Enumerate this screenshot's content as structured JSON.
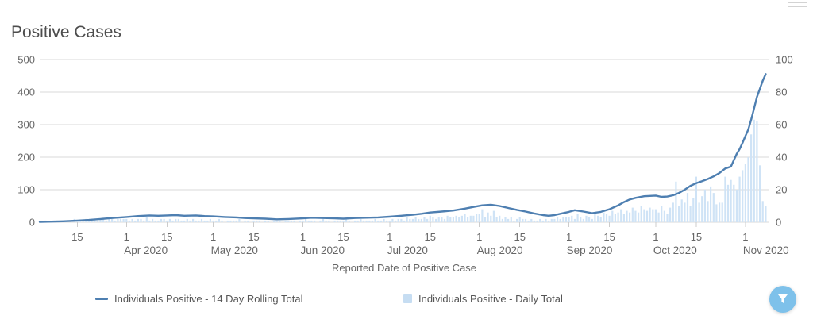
{
  "header": {
    "title": "Positive Cases"
  },
  "chart_data": {
    "type": "line+bar",
    "title": "Positive Cases",
    "xlabel": "Reported Date of Positive Case",
    "x_domain_days": 252,
    "x_start_date": "Mar 2 2020",
    "left_axis": {
      "min": 0,
      "max": 500,
      "ticks": [
        500,
        400,
        300,
        200,
        100,
        0
      ]
    },
    "right_axis": {
      "min": 0,
      "max": 100,
      "ticks": [
        100,
        80,
        60,
        40,
        20,
        0
      ]
    },
    "x_ticks": [
      {
        "day": 13,
        "label": "15"
      },
      {
        "day": 30,
        "label": "1",
        "month": "Apr 2020"
      },
      {
        "day": 44,
        "label": "15"
      },
      {
        "day": 60,
        "label": "1",
        "month": "May 2020"
      },
      {
        "day": 74,
        "label": "15"
      },
      {
        "day": 91,
        "label": "1",
        "month": "Jun 2020"
      },
      {
        "day": 105,
        "label": "15"
      },
      {
        "day": 121,
        "label": "1",
        "month": "Jul 2020"
      },
      {
        "day": 135,
        "label": "15"
      },
      {
        "day": 152,
        "label": "1",
        "month": "Aug 2020"
      },
      {
        "day": 166,
        "label": "15"
      },
      {
        "day": 183,
        "label": "1",
        "month": "Sep 2020"
      },
      {
        "day": 197,
        "label": "15"
      },
      {
        "day": 213,
        "label": "1",
        "month": "Oct 2020"
      },
      {
        "day": 227,
        "label": "15"
      },
      {
        "day": 244,
        "label": "1",
        "month": "Nov 2020"
      }
    ],
    "series": [
      {
        "name": "Individuals Positive - 14 Day Rolling Total",
        "type": "line",
        "axis": "left",
        "color": "#4e7fb1",
        "points": [
          [
            0,
            1
          ],
          [
            4,
            2
          ],
          [
            8,
            3
          ],
          [
            13,
            5
          ],
          [
            17,
            7
          ],
          [
            21,
            10
          ],
          [
            25,
            13
          ],
          [
            30,
            16
          ],
          [
            34,
            19
          ],
          [
            38,
            21
          ],
          [
            41,
            20
          ],
          [
            44,
            21
          ],
          [
            47,
            22
          ],
          [
            50,
            20
          ],
          [
            54,
            21
          ],
          [
            57,
            19
          ],
          [
            60,
            18
          ],
          [
            64,
            16
          ],
          [
            68,
            15
          ],
          [
            71,
            13
          ],
          [
            74,
            12
          ],
          [
            78,
            11
          ],
          [
            82,
            9
          ],
          [
            86,
            10
          ],
          [
            91,
            12
          ],
          [
            94,
            14
          ],
          [
            98,
            13
          ],
          [
            102,
            12
          ],
          [
            105,
            11
          ],
          [
            109,
            13
          ],
          [
            113,
            14
          ],
          [
            117,
            15
          ],
          [
            121,
            17
          ],
          [
            125,
            20
          ],
          [
            129,
            23
          ],
          [
            132,
            26
          ],
          [
            135,
            30
          ],
          [
            139,
            33
          ],
          [
            143,
            36
          ],
          [
            147,
            42
          ],
          [
            150,
            47
          ],
          [
            153,
            52
          ],
          [
            156,
            54
          ],
          [
            159,
            50
          ],
          [
            162,
            44
          ],
          [
            165,
            38
          ],
          [
            168,
            33
          ],
          [
            171,
            27
          ],
          [
            174,
            22
          ],
          [
            176,
            20
          ],
          [
            178,
            22
          ],
          [
            180,
            26
          ],
          [
            183,
            32
          ],
          [
            185,
            37
          ],
          [
            188,
            33
          ],
          [
            191,
            28
          ],
          [
            194,
            32
          ],
          [
            197,
            40
          ],
          [
            200,
            52
          ],
          [
            202,
            62
          ],
          [
            204,
            70
          ],
          [
            206,
            75
          ],
          [
            209,
            80
          ],
          [
            211,
            81
          ],
          [
            213,
            82
          ],
          [
            215,
            78
          ],
          [
            217,
            79
          ],
          [
            219,
            83
          ],
          [
            221,
            90
          ],
          [
            223,
            100
          ],
          [
            225,
            112
          ],
          [
            227,
            120
          ],
          [
            229,
            126
          ],
          [
            231,
            133
          ],
          [
            233,
            141
          ],
          [
            235,
            151
          ],
          [
            236,
            158
          ],
          [
            237,
            165
          ],
          [
            239,
            171
          ],
          [
            241,
            210
          ],
          [
            242,
            225
          ],
          [
            243,
            244
          ],
          [
            244,
            265
          ],
          [
            245,
            285
          ],
          [
            246,
            315
          ],
          [
            247,
            350
          ],
          [
            248,
            385
          ],
          [
            249,
            410
          ],
          [
            250,
            435
          ],
          [
            251,
            455
          ]
        ]
      },
      {
        "name": "Individuals Positive - Daily Total",
        "type": "bar",
        "axis": "right",
        "color": "#cfe3f6",
        "values": [
          0,
          0,
          1,
          0,
          0,
          1,
          1,
          0,
          1,
          1,
          0,
          1,
          2,
          1,
          1,
          1,
          2,
          1,
          1,
          2,
          1,
          2,
          2,
          1,
          2,
          2,
          1,
          2,
          2,
          2,
          2,
          1,
          2,
          1,
          2,
          2,
          1,
          3,
          1,
          2,
          1,
          1,
          2,
          2,
          1,
          2,
          1,
          2,
          2,
          1,
          1,
          2,
          1,
          2,
          1,
          1,
          2,
          1,
          1,
          2,
          1,
          1,
          2,
          1,
          0,
          1,
          1,
          1,
          1,
          2,
          0,
          1,
          1,
          0,
          1,
          1,
          1,
          0,
          1,
          1,
          0,
          1,
          1,
          1,
          0,
          1,
          1,
          1,
          1,
          0,
          1,
          1,
          2,
          1,
          1,
          1,
          0,
          1,
          2,
          1,
          1,
          0,
          1,
          1,
          1,
          1,
          2,
          1,
          0,
          1,
          1,
          2,
          1,
          1,
          1,
          1,
          2,
          1,
          1,
          2,
          1,
          1,
          2,
          1,
          2,
          2,
          1,
          3,
          2,
          2,
          3,
          2,
          2,
          3,
          2,
          4,
          3,
          2,
          3,
          3,
          2,
          4,
          3,
          3,
          4,
          3,
          4,
          5,
          3,
          4,
          4,
          5,
          5,
          8,
          3,
          6,
          4,
          7,
          3,
          4,
          2,
          3,
          2,
          3,
          1,
          2,
          3,
          2,
          2,
          1,
          2,
          1,
          1,
          2,
          1,
          2,
          1,
          2,
          2,
          3,
          2,
          3,
          3,
          3,
          4,
          2,
          5,
          3,
          2,
          4,
          3,
          2,
          5,
          4,
          3,
          6,
          5,
          4,
          7,
          5,
          6,
          8,
          5,
          7,
          6,
          9,
          7,
          6,
          10,
          8,
          7,
          9,
          8,
          8,
          6,
          10,
          7,
          5,
          9,
          12,
          25,
          10,
          14,
          12,
          18,
          10,
          15,
          28,
          12,
          16,
          20,
          13,
          22,
          18,
          11,
          12,
          12,
          28,
          23,
          26,
          23,
          20,
          28,
          32,
          36,
          40,
          54,
          63,
          62,
          35,
          13,
          10
        ]
      }
    ],
    "grid": true,
    "legend_position": "bottom"
  },
  "legend": {
    "items": [
      {
        "label": "Individuals Positive - 14 Day Rolling Total",
        "marker": "line",
        "color": "#4e7fb1"
      },
      {
        "label": "Individuals Positive - Daily Total",
        "marker": "square",
        "color": "#c6ddf2"
      }
    ]
  },
  "controls": {
    "filter_button": {
      "icon": "funnel-icon",
      "color": "#7ec1ea"
    },
    "menu_icon": "hamburger"
  },
  "style": {
    "grid_color": "#d9d9d9",
    "tick_color": "#cccccc",
    "axis_text_color": "#666666",
    "title_color": "#4d4d4d"
  }
}
